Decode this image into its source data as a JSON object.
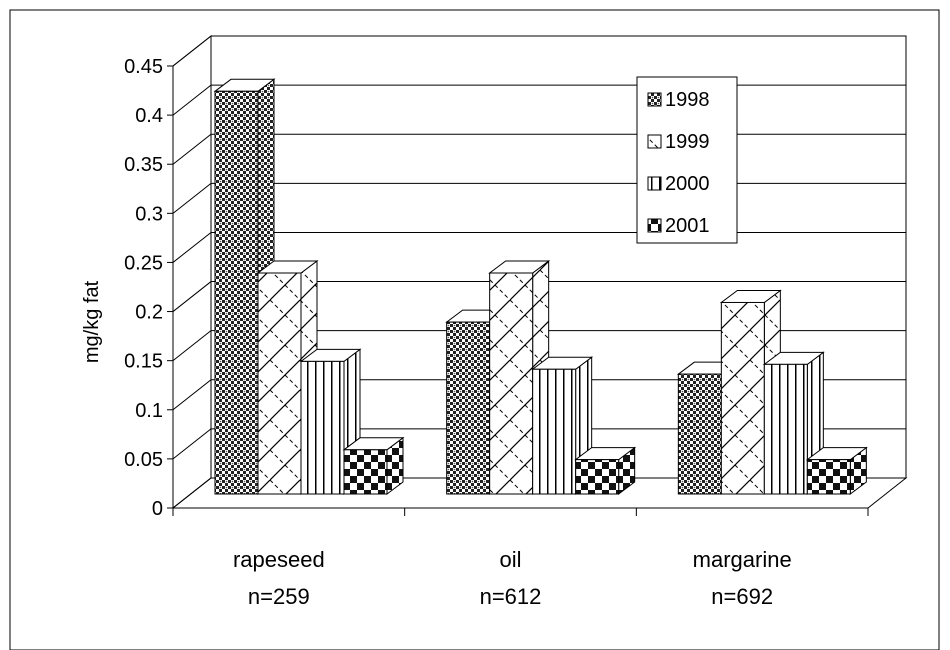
{
  "chart_data": {
    "type": "bar",
    "title": "",
    "xlabel": "",
    "ylabel": "mg/kg fat",
    "ylim": [
      0,
      0.45
    ],
    "yticks": [
      "0",
      "0.05",
      "0.1",
      "0.15",
      "0.2",
      "0.25",
      "0.3",
      "0.35",
      "0.4",
      "0.45"
    ],
    "categories": [
      {
        "name": "rapeseed",
        "n_label": "n=259"
      },
      {
        "name": "oil",
        "n_label": "n=612"
      },
      {
        "name": "margarine",
        "n_label": "n=692"
      }
    ],
    "series": [
      {
        "name": "1998",
        "values": [
          0.41,
          0.175,
          0.122
        ],
        "pattern": "dots"
      },
      {
        "name": "1999",
        "values": [
          0.225,
          0.225,
          0.195
        ],
        "pattern": "diag"
      },
      {
        "name": "2000",
        "values": [
          0.135,
          0.127,
          0.132
        ],
        "pattern": "vert"
      },
      {
        "name": "2001",
        "values": [
          0.045,
          0.035,
          0.035
        ],
        "pattern": "checker"
      }
    ],
    "legend_position": "top-right",
    "grid": true,
    "three_d": true
  }
}
